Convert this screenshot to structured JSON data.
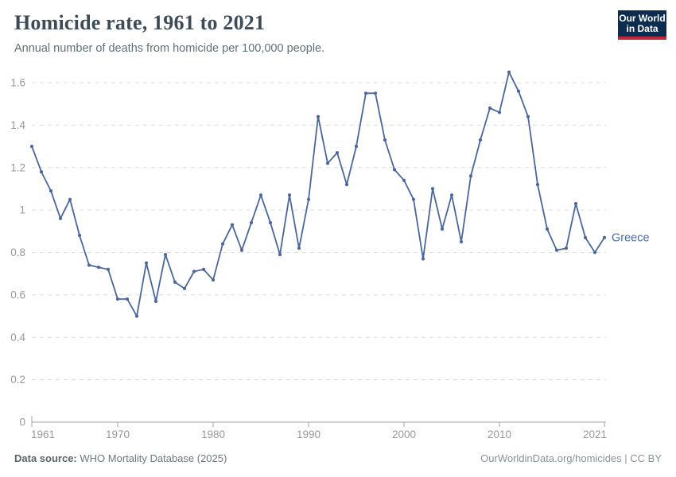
{
  "header": {
    "title": "Homicide rate, 1961 to 2021",
    "subtitle": "Annual number of deaths from homicide per 100,000 people."
  },
  "logo": {
    "line1": "Our World",
    "line2": "in Data",
    "bg_color": "#0d2d50",
    "accent_color": "#c0283c"
  },
  "chart_data": {
    "type": "line",
    "title": "Homicide rate, 1961 to 2021",
    "subtitle": "Annual number of deaths from homicide per 100,000 people.",
    "xlabel": "",
    "ylabel": "",
    "xlim": [
      1961,
      2021
    ],
    "ylim": [
      0,
      1.6
    ],
    "x_ticks": [
      1961,
      1970,
      1980,
      1990,
      2000,
      2010,
      2021
    ],
    "y_ticks": [
      0,
      0.2,
      0.4,
      0.6,
      0.8,
      1,
      1.2,
      1.4,
      1.6
    ],
    "grid": "horizontal-dashed",
    "legend_position": "end-of-line-label",
    "series": [
      {
        "name": "Greece",
        "color": "#4a679c",
        "label_color": "#4e6ca0",
        "x": [
          1961,
          1962,
          1963,
          1964,
          1965,
          1966,
          1967,
          1968,
          1969,
          1970,
          1971,
          1972,
          1973,
          1974,
          1975,
          1976,
          1977,
          1978,
          1979,
          1980,
          1981,
          1982,
          1983,
          1984,
          1985,
          1986,
          1987,
          1988,
          1989,
          1990,
          1991,
          1992,
          1993,
          1994,
          1995,
          1996,
          1997,
          1998,
          1999,
          2000,
          2001,
          2002,
          2003,
          2004,
          2005,
          2006,
          2007,
          2008,
          2009,
          2010,
          2011,
          2012,
          2013,
          2014,
          2015,
          2016,
          2017,
          2018,
          2019,
          2020,
          2021
        ],
        "values": [
          1.3,
          1.18,
          1.09,
          0.96,
          1.05,
          0.88,
          0.74,
          0.73,
          0.72,
          0.58,
          0.58,
          0.5,
          0.75,
          0.57,
          0.79,
          0.66,
          0.63,
          0.71,
          0.72,
          0.67,
          0.84,
          0.93,
          0.81,
          0.94,
          1.07,
          0.94,
          0.79,
          1.07,
          0.82,
          1.05,
          1.44,
          1.22,
          1.27,
          1.12,
          1.3,
          1.55,
          1.55,
          1.33,
          1.19,
          1.14,
          1.05,
          0.77,
          1.1,
          0.91,
          1.07,
          0.85,
          1.16,
          1.33,
          1.48,
          1.46,
          1.65,
          1.56,
          1.44,
          1.12,
          0.91,
          0.81,
          0.82,
          1.03,
          0.87,
          0.8,
          0.87
        ]
      }
    ]
  },
  "colors": {
    "grid": "#dcdcdc",
    "axis": "#a3a3a3",
    "tick_text": "#999999"
  },
  "footer": {
    "data_source_label": "Data source:",
    "data_source": "WHO Mortality Database (2025)",
    "link": "OurWorldinData.org/homicides | CC BY"
  }
}
